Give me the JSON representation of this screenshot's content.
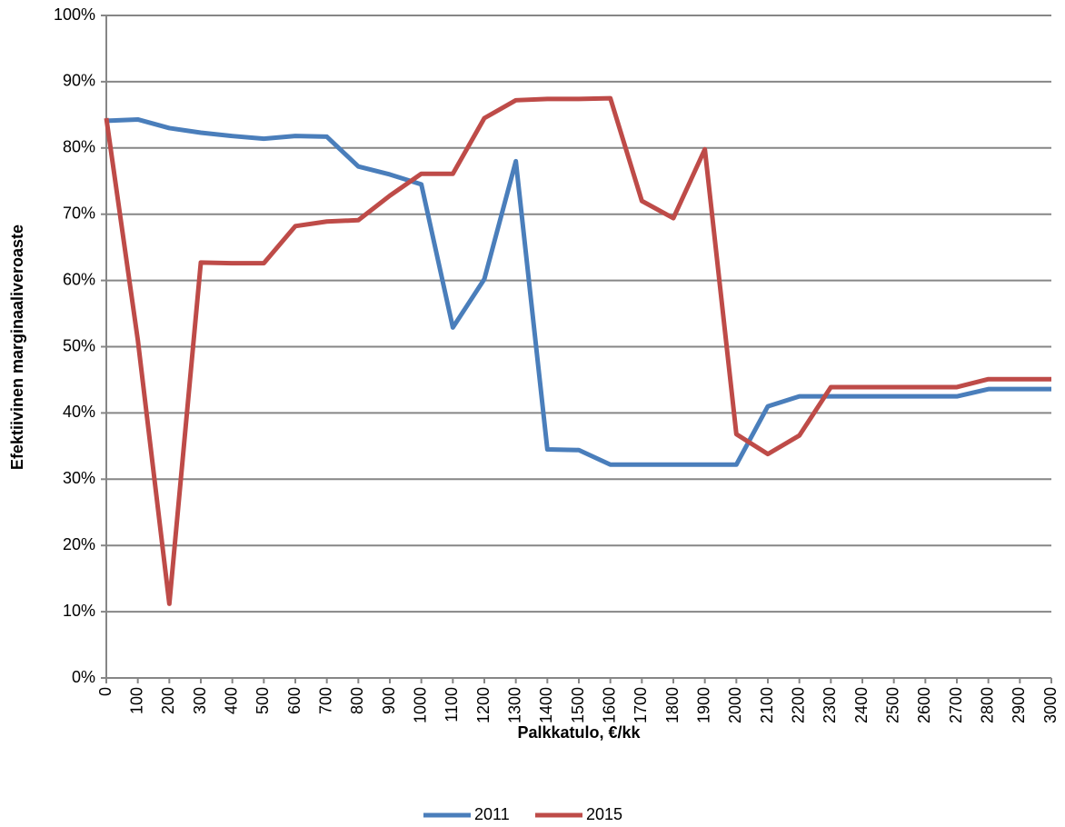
{
  "chart_data": {
    "type": "line",
    "xlabel": "Palkkatulo, €/kk",
    "ylabel": "Efektiivinen marginaaliveroaste",
    "x": [
      0,
      100,
      200,
      300,
      400,
      500,
      600,
      700,
      800,
      900,
      1000,
      1100,
      1200,
      1300,
      1400,
      1500,
      1600,
      1700,
      1800,
      1900,
      2000,
      2100,
      2200,
      2300,
      2400,
      2500,
      2600,
      2700,
      2800,
      2900,
      3000
    ],
    "series": [
      {
        "name": "2011",
        "color": "#4a7ebb",
        "values": [
          84.1,
          84.3,
          83,
          82.3,
          81.8,
          81.4,
          81.8,
          81.7,
          77.2,
          76,
          74.5,
          52.9,
          60.2,
          78,
          34.5,
          34.4,
          32.2,
          32.2,
          32.2,
          32.2,
          32.2,
          41,
          42.5,
          42.5,
          42.5,
          42.5,
          42.5,
          42.5,
          43.6,
          43.6,
          43.6
        ]
      },
      {
        "name": "2015",
        "color": "#be4b48",
        "values": [
          84.5,
          51,
          11.2,
          62.7,
          62.6,
          62.6,
          68.2,
          68.9,
          69.1,
          72.8,
          76.1,
          76.1,
          84.5,
          87.2,
          87.4,
          87.4,
          87.5,
          72,
          69.4,
          79.8,
          36.8,
          33.8,
          36.6,
          43.9,
          43.9,
          43.9,
          43.9,
          43.9,
          45.1,
          45.1,
          45.1
        ]
      }
    ],
    "xlim": [
      0,
      3000
    ],
    "xticks": [
      0,
      100,
      200,
      300,
      400,
      500,
      600,
      700,
      800,
      900,
      1000,
      1100,
      1200,
      1300,
      1400,
      1500,
      1600,
      1700,
      1800,
      1900,
      2000,
      2100,
      2200,
      2300,
      2400,
      2500,
      2600,
      2700,
      2800,
      2900,
      3000
    ],
    "ylim": [
      0,
      100
    ],
    "yticks": [
      {
        "value": 0,
        "label": "0%"
      },
      {
        "value": 10,
        "label": "10%"
      },
      {
        "value": 20,
        "label": "20%"
      },
      {
        "value": 30,
        "label": "30%"
      },
      {
        "value": 40,
        "label": "40%"
      },
      {
        "value": 50,
        "label": "50%"
      },
      {
        "value": 60,
        "label": "60%"
      },
      {
        "value": 70,
        "label": "70%"
      },
      {
        "value": 80,
        "label": "80%"
      },
      {
        "value": 90,
        "label": "90%"
      },
      {
        "value": 100,
        "label": "100%"
      }
    ],
    "grid": true,
    "legend": "bottom"
  }
}
